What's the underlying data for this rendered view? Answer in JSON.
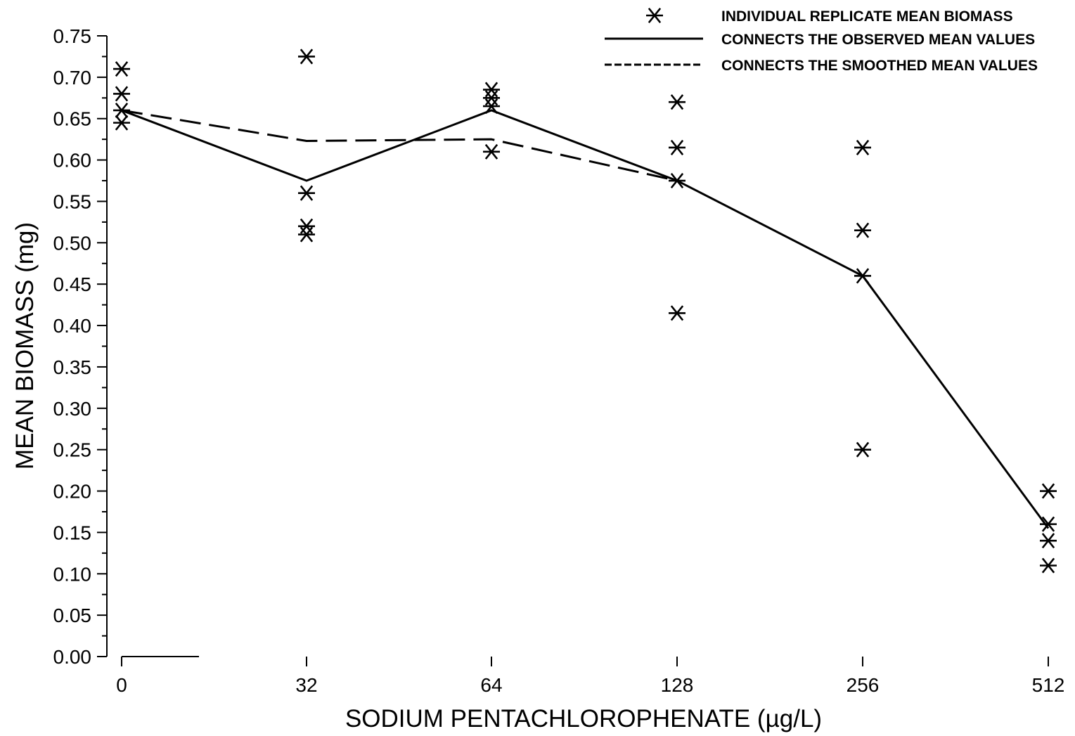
{
  "chart_data": {
    "type": "scatter",
    "xlabel": "SODIUM PENTACHLOROPHENATE (µg/L)",
    "ylabel": "MEAN BIOMASS (mg)",
    "x_scale": "categorical",
    "categories": [
      "0",
      "32",
      "64",
      "128",
      "256",
      "512"
    ],
    "ylim": [
      0,
      0.75
    ],
    "yticks": [
      "0.00",
      "0.05",
      "0.10",
      "0.15",
      "0.20",
      "0.25",
      "0.30",
      "0.35",
      "0.40",
      "0.45",
      "0.50",
      "0.55",
      "0.60",
      "0.65",
      "0.70",
      "0.75"
    ],
    "y_minor_step": 0.025,
    "grid": false,
    "legend_position": "top-right",
    "series": [
      {
        "name": "INDIVIDUAL REPLICATE MEAN BIOMASS",
        "marker": "asterisk",
        "points": [
          {
            "x": "0",
            "y": 0.71
          },
          {
            "x": "0",
            "y": 0.68
          },
          {
            "x": "0",
            "y": 0.66
          },
          {
            "x": "0",
            "y": 0.645
          },
          {
            "x": "32",
            "y": 0.725
          },
          {
            "x": "32",
            "y": 0.56
          },
          {
            "x": "32",
            "y": 0.52
          },
          {
            "x": "32",
            "y": 0.51
          },
          {
            "x": "64",
            "y": 0.685
          },
          {
            "x": "64",
            "y": 0.675
          },
          {
            "x": "64",
            "y": 0.665
          },
          {
            "x": "64",
            "y": 0.61
          },
          {
            "x": "128",
            "y": 0.67
          },
          {
            "x": "128",
            "y": 0.615
          },
          {
            "x": "128",
            "y": 0.575
          },
          {
            "x": "128",
            "y": 0.415
          },
          {
            "x": "256",
            "y": 0.615
          },
          {
            "x": "256",
            "y": 0.515
          },
          {
            "x": "256",
            "y": 0.46
          },
          {
            "x": "256",
            "y": 0.25
          },
          {
            "x": "512",
            "y": 0.2
          },
          {
            "x": "512",
            "y": 0.16
          },
          {
            "x": "512",
            "y": 0.14
          },
          {
            "x": "512",
            "y": 0.11
          }
        ]
      },
      {
        "name": "CONNECTS THE OBSERVED MEAN VALUES",
        "style": "solid",
        "values": [
          0.66,
          0.575,
          0.66,
          0.575,
          0.46,
          0.155
        ]
      },
      {
        "name": "CONNECTS THE SMOOTHED MEAN VALUES",
        "style": "dashed",
        "values": [
          0.66,
          0.623,
          0.625,
          0.575
        ]
      }
    ]
  }
}
